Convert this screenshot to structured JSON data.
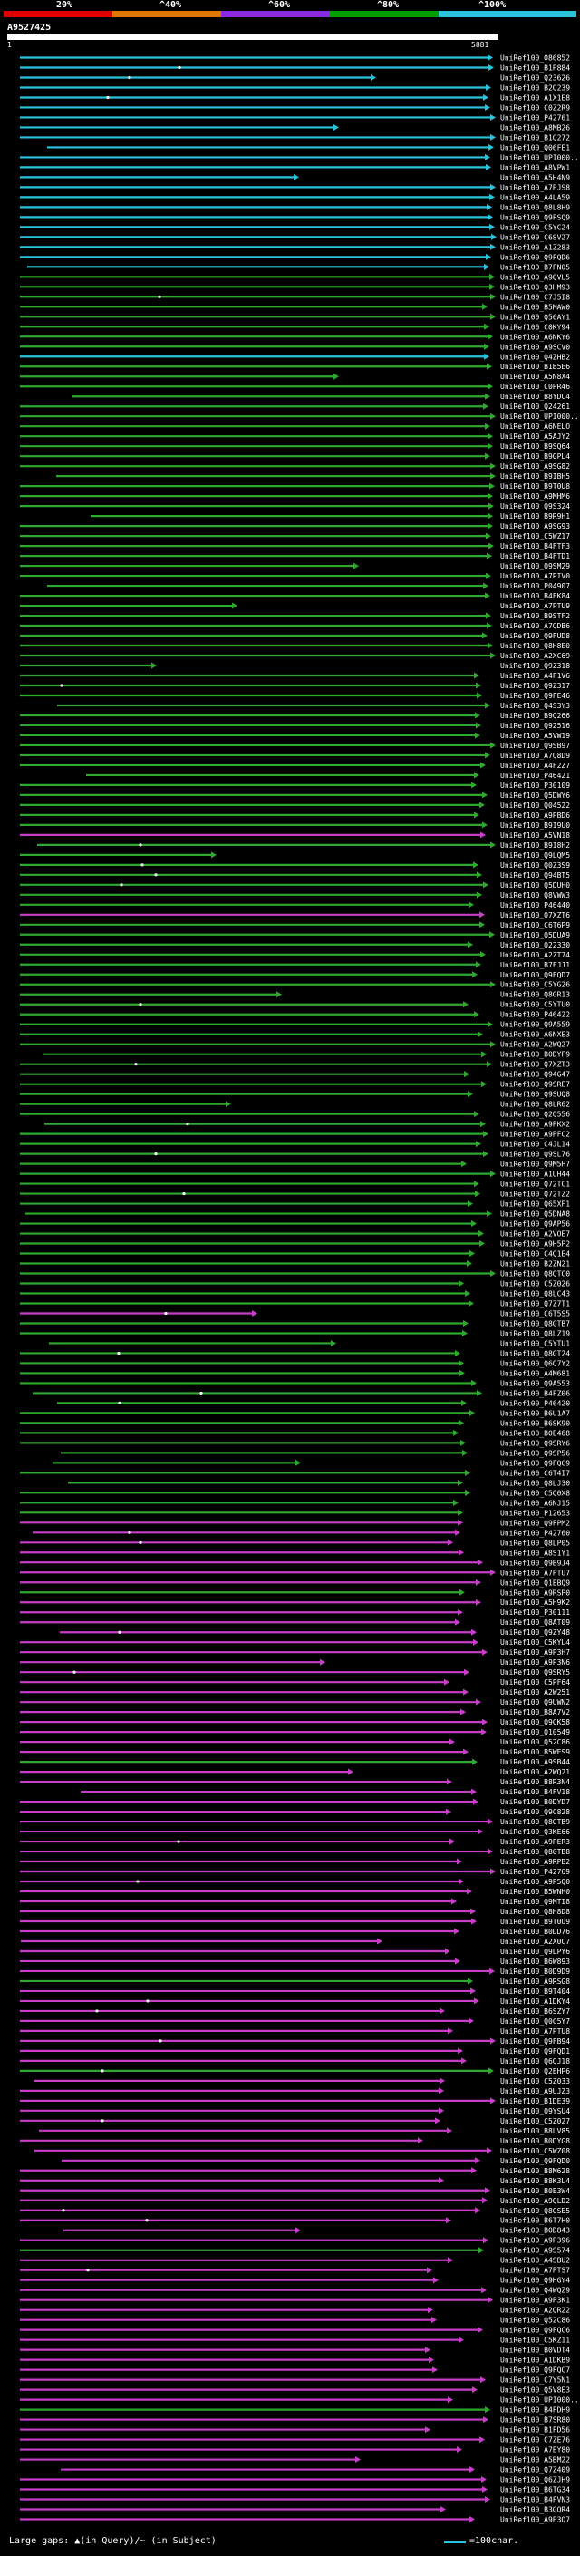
{
  "legend": {
    "labels": [
      "20%",
      "^40%",
      "^60%",
      "^80%",
      "^100%"
    ],
    "bar_colors": [
      "#e00000",
      "#e07800",
      "#8a2be2",
      "#00a000",
      "#29c4dc"
    ]
  },
  "query": {
    "name": "A9527425",
    "start": "1",
    "end": "5881"
  },
  "footer": {
    "text": "Large gaps: ▲(in Query)/~ (in Subject)",
    "scale_text": "=100char."
  },
  "colors": {
    "cyan": "#29c4dc",
    "green": "#2ea82e",
    "magenta": "#c83ec8",
    "label": "#ffffff"
  },
  "hits": [
    {
      "id": "UniRef100_O86852",
      "c": "cyan"
    },
    {
      "id": "UniRef100_B1P884",
      "c": "cyan"
    },
    {
      "id": "UniRef100_Q23626",
      "c": "cyan"
    },
    {
      "id": "UniRef100_B2Q239",
      "c": "cyan"
    },
    {
      "id": "UniRef100_A1X1E8",
      "c": "cyan"
    },
    {
      "id": "UniRef100_C0Z2R9",
      "c": "cyan"
    },
    {
      "id": "UniRef100_P42761",
      "c": "cyan"
    },
    {
      "id": "UniRef100_A8MB26",
      "c": "cyan"
    },
    {
      "id": "UniRef100_B1Q272",
      "c": "cyan"
    },
    {
      "id": "UniRef100_Q06FE1",
      "c": "cyan"
    },
    {
      "id": "UniRef100_UPI000...",
      "c": "cyan"
    },
    {
      "id": "UniRef100_A8VPW1",
      "c": "cyan"
    },
    {
      "id": "UniRef100_A5H4N9",
      "c": "cyan"
    },
    {
      "id": "UniRef100_A7PJS8",
      "c": "cyan"
    },
    {
      "id": "UniRef100_A4LA59",
      "c": "cyan"
    },
    {
      "id": "UniRef100_Q8L8H9",
      "c": "cyan"
    },
    {
      "id": "UniRef100_Q9FSQ9",
      "c": "cyan"
    },
    {
      "id": "UniRef100_C5YC24",
      "c": "cyan"
    },
    {
      "id": "UniRef100_C6SV27",
      "c": "cyan"
    },
    {
      "id": "UniRef100_A1Z283",
      "c": "cyan"
    },
    {
      "id": "UniRef100_Q9FQD6",
      "c": "cyan"
    },
    {
      "id": "UniRef100_B7FN05",
      "c": "cyan"
    },
    {
      "id": "UniRef100_A9QVL5",
      "c": "green"
    },
    {
      "id": "UniRef100_Q3HM93",
      "c": "green"
    },
    {
      "id": "UniRef100_C7J5I8",
      "c": "green"
    },
    {
      "id": "UniRef100_B5MAW0",
      "c": "green"
    },
    {
      "id": "UniRef100_Q56AY1",
      "c": "green"
    },
    {
      "id": "UniRef100_C0KY94",
      "c": "green"
    },
    {
      "id": "UniRef100_A6NKY6",
      "c": "green"
    },
    {
      "id": "UniRef100_A9SCV0",
      "c": "green"
    },
    {
      "id": "UniRef100_Q4ZHB2",
      "c": "cyan"
    },
    {
      "id": "UniRef100_B1B5E6",
      "c": "green"
    },
    {
      "id": "UniRef100_A5N8X4",
      "c": "green"
    },
    {
      "id": "UniRef100_C0PR46",
      "c": "green"
    },
    {
      "id": "UniRef100_B8YDC4",
      "c": "green"
    },
    {
      "id": "UniRef100_Q24261",
      "c": "green"
    },
    {
      "id": "UniRef100_UPI000...",
      "c": "green"
    },
    {
      "id": "UniRef100_A6NELO",
      "c": "green"
    },
    {
      "id": "UniRef100_A5AJY2",
      "c": "green"
    },
    {
      "id": "UniRef100_B9SQ64",
      "c": "green"
    },
    {
      "id": "UniRef100_B9GPL4",
      "c": "green"
    },
    {
      "id": "UniRef100_A9SG82",
      "c": "green"
    },
    {
      "id": "UniRef100_B9IBH5",
      "c": "green"
    },
    {
      "id": "UniRef100_B9T0U8",
      "c": "green"
    },
    {
      "id": "UniRef100_A9MHM6",
      "c": "green"
    },
    {
      "id": "UniRef100_Q9S324",
      "c": "green"
    },
    {
      "id": "UniRef100_B9R9H1",
      "c": "green"
    },
    {
      "id": "UniRef100_A9SG93",
      "c": "green"
    },
    {
      "id": "UniRef100_C5WZ17",
      "c": "green"
    },
    {
      "id": "UniRef100_B4FTF3",
      "c": "green"
    },
    {
      "id": "UniRef100_B4FTD1",
      "c": "green"
    },
    {
      "id": "UniRef100_Q9SM29",
      "c": "green"
    },
    {
      "id": "UniRef100_A7PIV0",
      "c": "green"
    },
    {
      "id": "UniRef100_P04907",
      "c": "green"
    },
    {
      "id": "UniRef100_B4FK84",
      "c": "green"
    },
    {
      "id": "UniRef100_A7PTU9",
      "c": "green"
    },
    {
      "id": "UniRef100_B9STF2",
      "c": "green"
    },
    {
      "id": "UniRef100_A7QDB6",
      "c": "green"
    },
    {
      "id": "UniRef100_Q9FUD8",
      "c": "green"
    },
    {
      "id": "UniRef100_Q8H8E0",
      "c": "green"
    },
    {
      "id": "UniRef100_A2XC69",
      "c": "green"
    },
    {
      "id": "UniRef100_Q9Z318",
      "c": "green"
    },
    {
      "id": "UniRef100_A4F1V6",
      "c": "green"
    },
    {
      "id": "UniRef100_Q9Z317",
      "c": "green"
    },
    {
      "id": "UniRef100_Q9FE46",
      "c": "green"
    },
    {
      "id": "UniRef100_Q4S3Y3",
      "c": "green"
    },
    {
      "id": "UniRef100_B9Q266",
      "c": "green"
    },
    {
      "id": "UniRef100_Q92516",
      "c": "green"
    },
    {
      "id": "UniRef100_A5VW19",
      "c": "green"
    },
    {
      "id": "UniRef100_Q9SB97",
      "c": "green"
    },
    {
      "id": "UniRef100_A7Q8D9",
      "c": "green"
    },
    {
      "id": "UniRef100_A4F2Z7",
      "c": "green"
    },
    {
      "id": "UniRef100_P46421",
      "c": "green"
    },
    {
      "id": "UniRef100_P30109",
      "c": "green"
    },
    {
      "id": "UniRef100_Q5DWY6",
      "c": "green"
    },
    {
      "id": "UniRef100_Q04522",
      "c": "green"
    },
    {
      "id": "UniRef100_A9PBD6",
      "c": "green"
    },
    {
      "id": "UniRef100_B9I9U0",
      "c": "green"
    },
    {
      "id": "UniRef100_A5VN18",
      "c": "magenta"
    },
    {
      "id": "UniRef100_B9I8H2",
      "c": "green"
    },
    {
      "id": "UniRef100_Q9LQM5",
      "c": "green"
    },
    {
      "id": "UniRef100_Q0Z3S9",
      "c": "green"
    },
    {
      "id": "UniRef100_Q94BT5",
      "c": "green"
    },
    {
      "id": "UniRef100_Q5DUH0",
      "c": "green"
    },
    {
      "id": "UniRef100_Q8VWW3",
      "c": "green"
    },
    {
      "id": "UniRef100_P46440",
      "c": "green"
    },
    {
      "id": "UniRef100_Q7XZT6",
      "c": "magenta"
    },
    {
      "id": "UniRef100_C6T6P9",
      "c": "green"
    },
    {
      "id": "UniRef100_Q5DUA9",
      "c": "green"
    },
    {
      "id": "UniRef100_Q22330",
      "c": "green"
    },
    {
      "id": "UniRef100_A2ZT74",
      "c": "green"
    },
    {
      "id": "UniRef100_B7FJJ1",
      "c": "green"
    },
    {
      "id": "UniRef100_Q9FQD7",
      "c": "green"
    },
    {
      "id": "UniRef100_C5YG26",
      "c": "green"
    },
    {
      "id": "UniRef100_Q8GR13",
      "c": "green"
    },
    {
      "id": "UniRef100_C5YTU0",
      "c": "green"
    },
    {
      "id": "UniRef100_P46422",
      "c": "green"
    },
    {
      "id": "UniRef100_Q9A559",
      "c": "green"
    },
    {
      "id": "UniRef100_A6NXE3",
      "c": "green"
    },
    {
      "id": "UniRef100_A2WQ27",
      "c": "green"
    },
    {
      "id": "UniRef100_B0DYF9",
      "c": "green"
    },
    {
      "id": "UniRef100_Q7XZT3",
      "c": "green"
    },
    {
      "id": "UniRef100_Q94G47",
      "c": "green"
    },
    {
      "id": "UniRef100_Q9SRE7",
      "c": "green"
    },
    {
      "id": "UniRef100_Q9SUQ8",
      "c": "green"
    },
    {
      "id": "UniRef100_Q8LR62",
      "c": "green"
    },
    {
      "id": "UniRef100_Q2Q556",
      "c": "green"
    },
    {
      "id": "UniRef100_A9PKX2",
      "c": "green"
    },
    {
      "id": "UniRef100_A9PFC2",
      "c": "green"
    },
    {
      "id": "UniRef100_C4JL14",
      "c": "green"
    },
    {
      "id": "UniRef100_Q9SL76",
      "c": "green"
    },
    {
      "id": "UniRef100_Q9M5H7",
      "c": "green"
    },
    {
      "id": "UniRef100_A1UH44",
      "c": "green"
    },
    {
      "id": "UniRef100_Q72TC1",
      "c": "green"
    },
    {
      "id": "UniRef100_Q72TZ2",
      "c": "green"
    },
    {
      "id": "UniRef100_Q65XF1",
      "c": "green"
    },
    {
      "id": "UniRef100_Q5DNA8",
      "c": "green"
    },
    {
      "id": "UniRef100_Q9AP56",
      "c": "green"
    },
    {
      "id": "UniRef100_A2VOE7",
      "c": "green"
    },
    {
      "id": "UniRef100_A9H5P2",
      "c": "green"
    },
    {
      "id": "UniRef100_C4Q1E4",
      "c": "green"
    },
    {
      "id": "UniRef100_B2ZN21",
      "c": "green"
    },
    {
      "id": "UniRef100_Q8QTC0",
      "c": "green"
    },
    {
      "id": "UniRef100_C5Z026",
      "c": "green"
    },
    {
      "id": "UniRef100_Q8LC43",
      "c": "green"
    },
    {
      "id": "UniRef100_Q7Z7T1",
      "c": "green"
    },
    {
      "id": "UniRef100_C6T5S5",
      "c": "magenta"
    },
    {
      "id": "UniRef100_Q8GTB7",
      "c": "green"
    },
    {
      "id": "UniRef100_Q8LZ19",
      "c": "green"
    },
    {
      "id": "UniRef100_C5YTU1",
      "c": "green"
    },
    {
      "id": "UniRef100_Q8GT24",
      "c": "green"
    },
    {
      "id": "UniRef100_Q6Q7Y2",
      "c": "green"
    },
    {
      "id": "UniRef100_A4M681",
      "c": "green"
    },
    {
      "id": "UniRef100_Q9A553",
      "c": "green"
    },
    {
      "id": "UniRef100_B4FZ06",
      "c": "green"
    },
    {
      "id": "UniRef100_P46420",
      "c": "green"
    },
    {
      "id": "UniRef100_B6U1A7",
      "c": "green"
    },
    {
      "id": "UniRef100_B6SK90",
      "c": "green"
    },
    {
      "id": "UniRef100_B0E468",
      "c": "green"
    },
    {
      "id": "UniRef100_Q9SRY6",
      "c": "green"
    },
    {
      "id": "UniRef100_Q9SP56",
      "c": "green"
    },
    {
      "id": "UniRef100_Q9FQC9",
      "c": "green"
    },
    {
      "id": "UniRef100_C6T4I7",
      "c": "green"
    },
    {
      "id": "UniRef100_Q8LJ30",
      "c": "green"
    },
    {
      "id": "UniRef100_C5Q0X8",
      "c": "green"
    },
    {
      "id": "UniRef100_A6NJ15",
      "c": "green"
    },
    {
      "id": "UniRef100_P12653",
      "c": "green"
    },
    {
      "id": "UniRef100_Q9FPM2",
      "c": "magenta"
    },
    {
      "id": "UniRef100_P42760",
      "c": "magenta"
    },
    {
      "id": "UniRef100_Q8LP05",
      "c": "magenta"
    },
    {
      "id": "UniRef100_A8S1Y1",
      "c": "magenta"
    },
    {
      "id": "UniRef100_Q9B9J4",
      "c": "magenta"
    },
    {
      "id": "UniRef100_A7PTU7",
      "c": "magenta"
    },
    {
      "id": "UniRef100_Q1EBQ9",
      "c": "magenta"
    },
    {
      "id": "UniRef100_A9RSP0",
      "c": "green"
    },
    {
      "id": "UniRef100_A5H9K2",
      "c": "magenta"
    },
    {
      "id": "UniRef100_P30111",
      "c": "magenta"
    },
    {
      "id": "UniRef100_Q8AT09",
      "c": "magenta"
    },
    {
      "id": "UniRef100_Q9ZY48",
      "c": "magenta"
    },
    {
      "id": "UniRef100_C5KYL4",
      "c": "magenta"
    },
    {
      "id": "UniRef100_A9P3H7",
      "c": "magenta"
    },
    {
      "id": "UniRef100_A9P3N6",
      "c": "magenta"
    },
    {
      "id": "UniRef100_Q9SRY5",
      "c": "magenta"
    },
    {
      "id": "UniRef100_C5PF64",
      "c": "magenta"
    },
    {
      "id": "UniRef100_A2W251",
      "c": "magenta"
    },
    {
      "id": "UniRef100_Q9UWN2",
      "c": "magenta"
    },
    {
      "id": "UniRef100_B8A7V2",
      "c": "magenta"
    },
    {
      "id": "UniRef100_Q9CK58",
      "c": "magenta"
    },
    {
      "id": "UniRef100_Q10549",
      "c": "magenta"
    },
    {
      "id": "UniRef100_Q52C86",
      "c": "magenta"
    },
    {
      "id": "UniRef100_B5WES9",
      "c": "magenta"
    },
    {
      "id": "UniRef100_A9SB44",
      "c": "green"
    },
    {
      "id": "UniRef100_A2WQ21",
      "c": "magenta"
    },
    {
      "id": "UniRef100_B8R3N4",
      "c": "magenta"
    },
    {
      "id": "UniRef100_B4FV18",
      "c": "magenta"
    },
    {
      "id": "UniRef100_B0DYD7",
      "c": "magenta"
    },
    {
      "id": "UniRef100_Q9C828",
      "c": "magenta"
    },
    {
      "id": "UniRef100_Q8GTB9",
      "c": "magenta"
    },
    {
      "id": "UniRef100_Q3KE66",
      "c": "magenta"
    },
    {
      "id": "UniRef100_A9PER3",
      "c": "magenta"
    },
    {
      "id": "UniRef100_Q8GTB8",
      "c": "magenta"
    },
    {
      "id": "UniRef100_A9RPB2",
      "c": "magenta"
    },
    {
      "id": "UniRef100_P42769",
      "c": "magenta"
    },
    {
      "id": "UniRef100_A9P5Q0",
      "c": "magenta"
    },
    {
      "id": "UniRef100_B5WNH0",
      "c": "magenta"
    },
    {
      "id": "UniRef100_Q9MTI8",
      "c": "magenta"
    },
    {
      "id": "UniRef100_Q8H8D8",
      "c": "magenta"
    },
    {
      "id": "UniRef100_B9T0U9",
      "c": "magenta"
    },
    {
      "id": "UniRef100_B0DD76",
      "c": "magenta"
    },
    {
      "id": "UniRef100_A2X0C7",
      "c": "magenta"
    },
    {
      "id": "UniRef100_Q9LPY6",
      "c": "magenta"
    },
    {
      "id": "UniRef100_B6W893",
      "c": "magenta"
    },
    {
      "id": "UniRef100_B0D9D9",
      "c": "magenta"
    },
    {
      "id": "UniRef100_A9RSG8",
      "c": "green"
    },
    {
      "id": "UniRef100_B9T404",
      "c": "magenta"
    },
    {
      "id": "UniRef100_A1DKY4",
      "c": "magenta"
    },
    {
      "id": "UniRef100_B6SZY7",
      "c": "magenta"
    },
    {
      "id": "UniRef100_Q0C5Y7",
      "c": "magenta"
    },
    {
      "id": "UniRef100_A7PTU8",
      "c": "magenta"
    },
    {
      "id": "UniRef100_Q9FB94",
      "c": "magenta"
    },
    {
      "id": "UniRef100_Q9FQD1",
      "c": "magenta"
    },
    {
      "id": "UniRef100_Q6QJ18",
      "c": "magenta"
    },
    {
      "id": "UniRef100_Q2EHP6",
      "c": "green"
    },
    {
      "id": "UniRef100_C5Z033",
      "c": "magenta"
    },
    {
      "id": "UniRef100_A9UJZ3",
      "c": "magenta"
    },
    {
      "id": "UniRef100_B1DE39",
      "c": "magenta"
    },
    {
      "id": "UniRef100_Q9YSU4",
      "c": "magenta"
    },
    {
      "id": "UniRef100_C5Z027",
      "c": "magenta"
    },
    {
      "id": "UniRef100_B8LV85",
      "c": "magenta"
    },
    {
      "id": "UniRef100_B0DYG8",
      "c": "magenta"
    },
    {
      "id": "UniRef100_C5WZ08",
      "c": "magenta"
    },
    {
      "id": "UniRef100_Q9FQD0",
      "c": "magenta"
    },
    {
      "id": "UniRef100_B8M628",
      "c": "magenta"
    },
    {
      "id": "UniRef100_B8K3L4",
      "c": "magenta"
    },
    {
      "id": "UniRef100_B0E3W4",
      "c": "magenta"
    },
    {
      "id": "UniRef100_A9QLD2",
      "c": "magenta"
    },
    {
      "id": "UniRef100_Q8GSE5",
      "c": "magenta"
    },
    {
      "id": "UniRef100_B6T7H0",
      "c": "magenta"
    },
    {
      "id": "UniRef100_B0D843",
      "c": "magenta"
    },
    {
      "id": "UniRef100_A9P396",
      "c": "magenta"
    },
    {
      "id": "UniRef100_A9S574",
      "c": "green"
    },
    {
      "id": "UniRef100_A4SBU2",
      "c": "magenta"
    },
    {
      "id": "UniRef100_A7PTS7",
      "c": "magenta"
    },
    {
      "id": "UniRef100_Q9HGY4",
      "c": "magenta"
    },
    {
      "id": "UniRef100_Q4WQZ9",
      "c": "magenta"
    },
    {
      "id": "UniRef100_A9P3K1",
      "c": "magenta"
    },
    {
      "id": "UniRef100_A2QR22",
      "c": "magenta"
    },
    {
      "id": "UniRef100_Q52C86",
      "c": "magenta"
    },
    {
      "id": "UniRef100_Q9FQC6",
      "c": "magenta"
    },
    {
      "id": "UniRef100_C5KZ11",
      "c": "magenta"
    },
    {
      "id": "UniRef100_B0VDT4",
      "c": "magenta"
    },
    {
      "id": "UniRef100_A1DKB9",
      "c": "magenta"
    },
    {
      "id": "UniRef100_Q9FQC7",
      "c": "magenta"
    },
    {
      "id": "UniRef100_C7Y5N1",
      "c": "magenta"
    },
    {
      "id": "UniRef100_Q5V8E3",
      "c": "magenta"
    },
    {
      "id": "UniRef100_UPI000...",
      "c": "magenta"
    },
    {
      "id": "UniRef100_B4FDH9",
      "c": "green"
    },
    {
      "id": "UniRef100_B7SR80",
      "c": "magenta"
    },
    {
      "id": "UniRef100_B1FD56",
      "c": "magenta"
    },
    {
      "id": "UniRef100_C7ZE76",
      "c": "magenta"
    },
    {
      "id": "UniRef100_A7EY80",
      "c": "magenta"
    },
    {
      "id": "UniRef100_A5BM22",
      "c": "magenta"
    },
    {
      "id": "UniRef100_Q7Z409",
      "c": "magenta"
    },
    {
      "id": "UniRef100_Q6ZJH9",
      "c": "magenta"
    },
    {
      "id": "UniRef100_B6TG34",
      "c": "magenta"
    },
    {
      "id": "UniRef100_B4FVN3",
      "c": "magenta"
    },
    {
      "id": "UniRef100_B3GQR4",
      "c": "magenta"
    },
    {
      "id": "UniRef100_A9P3Q7",
      "c": "magenta"
    }
  ]
}
